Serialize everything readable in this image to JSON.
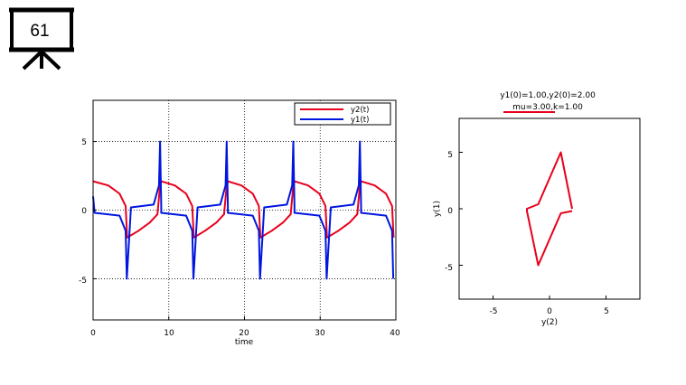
{
  "slide": {
    "number": "61"
  },
  "colors": {
    "y2": "#e8001c",
    "y1": "#0016e0",
    "phase": "#e8001c",
    "frame": "#000000",
    "grid": "#000000"
  },
  "left_plot": {
    "xlabel": "time",
    "x_ticks": [
      "0",
      "10",
      "20",
      "30",
      "40"
    ],
    "y_ticks": [
      "5",
      "0",
      "-5"
    ],
    "legend": [
      "y2(t)",
      "y1(t)"
    ]
  },
  "right_plot": {
    "title_line1": "y1(0)=1.00,y2(0)=2.00",
    "title_line2": "mu=3.00,k=1.00",
    "xlabel": "y(2)",
    "ylabel": "y(1)",
    "x_ticks": [
      "-5",
      "0",
      "5"
    ],
    "y_ticks": [
      "5",
      "0",
      "-5"
    ]
  },
  "chart_data": [
    {
      "type": "line",
      "xlabel": "time",
      "ylabel": "",
      "xlim": [
        0,
        40
      ],
      "ylim": [
        -8,
        8
      ],
      "grid": true,
      "legend_position": "top-right",
      "series": [
        {
          "name": "y2(t)",
          "x": [
            0,
            2,
            3.5,
            4.3,
            4.5,
            6,
            7.5,
            8.5,
            8.8,
            9.0
          ],
          "values": [
            2.1,
            1.8,
            1.2,
            0.3,
            -2.0,
            -1.5,
            -0.9,
            -0.3,
            1.5,
            2.1
          ]
        },
        {
          "name": "y1(t)",
          "x": [
            0,
            0.2,
            3.5,
            4.3,
            4.45,
            5.0,
            8.0,
            8.7,
            8.85,
            9.0
          ],
          "values": [
            1.0,
            -0.2,
            -0.4,
            -1.5,
            -5.0,
            0.2,
            0.4,
            1.8,
            5.0,
            0.3
          ]
        }
      ],
      "period": 8.8
    },
    {
      "type": "line",
      "title": "y1(0)=1.00,y2(0)=2.00 mu=3.00,k=1.00",
      "xlabel": "y(2)",
      "ylabel": "y(1)",
      "xlim": [
        -8,
        8
      ],
      "ylim": [
        -8,
        8
      ],
      "grid": false,
      "series": [
        {
          "name": "",
          "x": [
            2.0,
            2.0,
            1.0,
            -1.0,
            -2.0,
            -2.0,
            -1.0,
            1.0,
            2.0
          ],
          "values": [
            0.0,
            0.0,
            5.0,
            0.4,
            0.0,
            -0.2,
            -5.0,
            -0.4,
            -0.2
          ]
        }
      ]
    }
  ]
}
